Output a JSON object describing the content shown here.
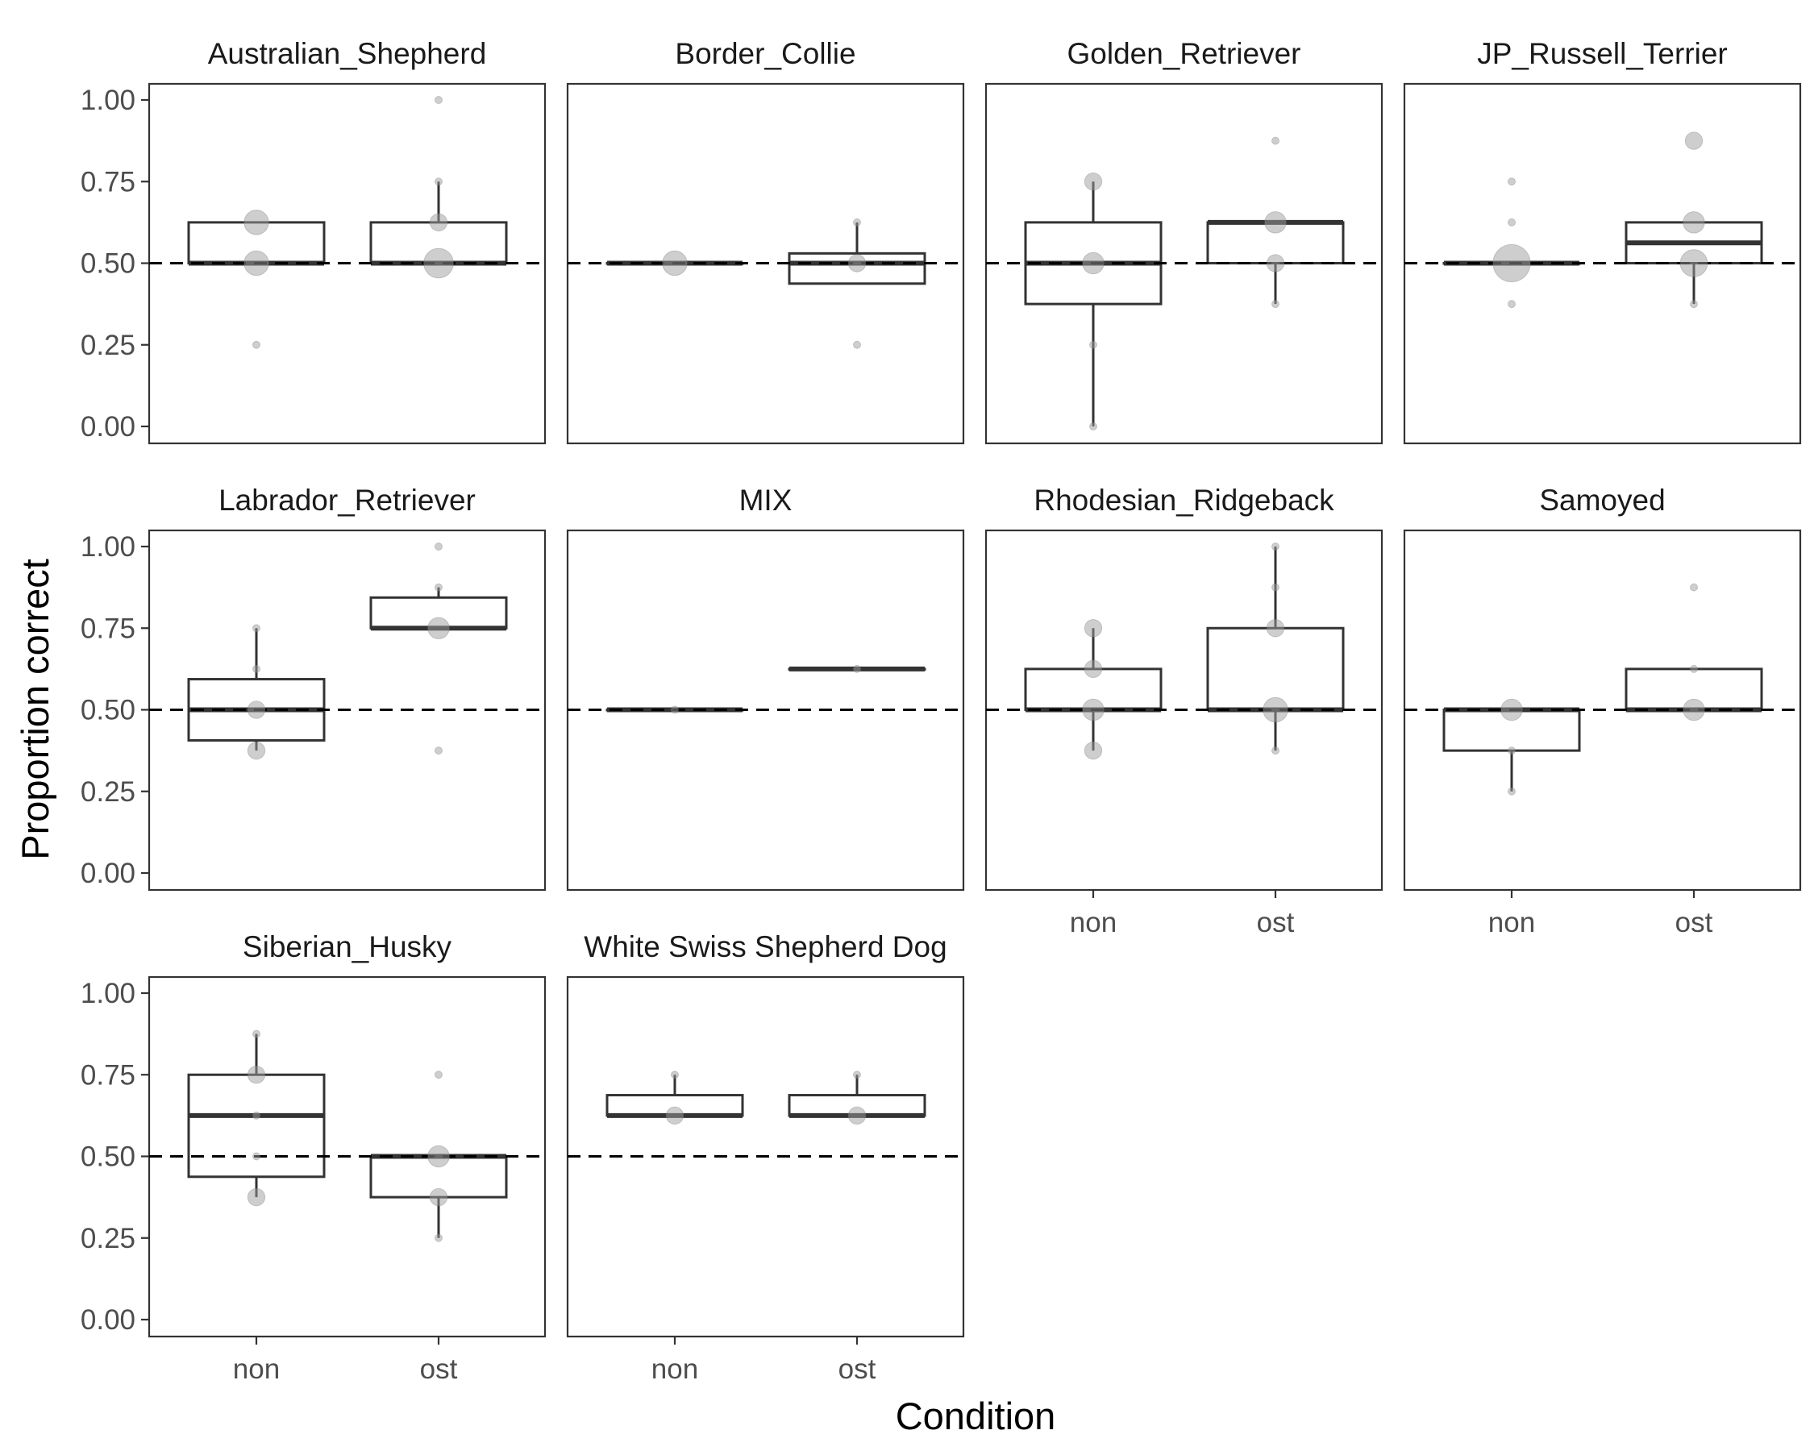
{
  "chart_data": {
    "type": "boxplot",
    "xlabel": "Condition",
    "ylabel": "Proportion correct",
    "ylim": [
      0,
      1
    ],
    "yticks": [
      "0.00",
      "0.25",
      "0.50",
      "0.75",
      "1.00"
    ],
    "categories": [
      "non",
      "ost"
    ],
    "reference_line": 0.5,
    "grid": false,
    "point_color": "#9e9e9e",
    "panels": [
      {
        "title": "Australian_Shepherd",
        "groups": [
          {
            "condition": "non",
            "box": {
              "lower": 0.5,
              "q1": 0.5,
              "median": 0.5,
              "q3": 0.625,
              "upper": 0.625
            },
            "points": [
              {
                "y": 0.625,
                "n": 4
              },
              {
                "y": 0.5,
                "n": 4
              },
              {
                "y": 0.25,
                "n": 1
              }
            ]
          },
          {
            "condition": "ost",
            "box": {
              "lower": 0.5,
              "q1": 0.5,
              "median": 0.5,
              "q3": 0.625,
              "upper": 0.75
            },
            "points": [
              {
                "y": 1.0,
                "n": 1
              },
              {
                "y": 0.75,
                "n": 1
              },
              {
                "y": 0.625,
                "n": 2
              },
              {
                "y": 0.5,
                "n": 6
              }
            ]
          }
        ]
      },
      {
        "title": "Border_Collie",
        "groups": [
          {
            "condition": "non",
            "box": {
              "lower": 0.5,
              "q1": 0.5,
              "median": 0.5,
              "q3": 0.5,
              "upper": 0.5
            },
            "points": [
              {
                "y": 0.5,
                "n": 4
              }
            ]
          },
          {
            "condition": "ost",
            "box": {
              "lower": 0.4375,
              "q1": 0.4375,
              "median": 0.5,
              "q3": 0.53,
              "upper": 0.625
            },
            "points": [
              {
                "y": 0.625,
                "n": 1
              },
              {
                "y": 0.5,
                "n": 2
              },
              {
                "y": 0.25,
                "n": 1
              }
            ]
          }
        ]
      },
      {
        "title": "Golden_Retriever",
        "groups": [
          {
            "condition": "non",
            "box": {
              "lower": 0.0,
              "q1": 0.375,
              "median": 0.5,
              "q3": 0.625,
              "upper": 0.75
            },
            "points": [
              {
                "y": 0.75,
                "n": 2
              },
              {
                "y": 0.5,
                "n": 3
              },
              {
                "y": 0.25,
                "n": 1
              },
              {
                "y": 0.0,
                "n": 1
              }
            ]
          },
          {
            "condition": "ost",
            "box": {
              "lower": 0.375,
              "q1": 0.5,
              "median": 0.625,
              "q3": 0.625,
              "upper": 0.625
            },
            "points": [
              {
                "y": 0.875,
                "n": 1
              },
              {
                "y": 0.625,
                "n": 3
              },
              {
                "y": 0.5,
                "n": 2
              },
              {
                "y": 0.375,
                "n": 1
              }
            ]
          }
        ]
      },
      {
        "title": "JP_Russell_Terrier",
        "groups": [
          {
            "condition": "non",
            "box": {
              "lower": 0.5,
              "q1": 0.5,
              "median": 0.5,
              "q3": 0.5,
              "upper": 0.5
            },
            "points": [
              {
                "y": 0.75,
                "n": 1
              },
              {
                "y": 0.625,
                "n": 1
              },
              {
                "y": 0.5,
                "n": 10
              },
              {
                "y": 0.375,
                "n": 1
              }
            ]
          },
          {
            "condition": "ost",
            "box": {
              "lower": 0.375,
              "q1": 0.5,
              "median": 0.5625,
              "q3": 0.625,
              "upper": 0.625
            },
            "points": [
              {
                "y": 0.875,
                "n": 2
              },
              {
                "y": 0.625,
                "n": 3
              },
              {
                "y": 0.5,
                "n": 5
              },
              {
                "y": 0.375,
                "n": 1
              }
            ]
          }
        ]
      },
      {
        "title": "Labrador_Retriever",
        "groups": [
          {
            "condition": "non",
            "box": {
              "lower": 0.375,
              "q1": 0.40625,
              "median": 0.5,
              "q3": 0.59375,
              "upper": 0.75
            },
            "points": [
              {
                "y": 0.75,
                "n": 1
              },
              {
                "y": 0.625,
                "n": 1
              },
              {
                "y": 0.5,
                "n": 2
              },
              {
                "y": 0.375,
                "n": 2
              }
            ]
          },
          {
            "condition": "ost",
            "box": {
              "lower": 0.75,
              "q1": 0.75,
              "median": 0.75,
              "q3": 0.84375,
              "upper": 0.875
            },
            "points": [
              {
                "y": 1.0,
                "n": 1
              },
              {
                "y": 0.875,
                "n": 1
              },
              {
                "y": 0.75,
                "n": 3
              },
              {
                "y": 0.375,
                "n": 1
              }
            ]
          }
        ]
      },
      {
        "title": "MIX",
        "groups": [
          {
            "condition": "non",
            "box": {
              "lower": 0.5,
              "q1": 0.5,
              "median": 0.5,
              "q3": 0.5,
              "upper": 0.5
            },
            "points": [
              {
                "y": 0.5,
                "n": 1
              }
            ]
          },
          {
            "condition": "ost",
            "box": {
              "lower": 0.625,
              "q1": 0.625,
              "median": 0.625,
              "q3": 0.625,
              "upper": 0.625
            },
            "points": [
              {
                "y": 0.625,
                "n": 1
              }
            ]
          }
        ]
      },
      {
        "title": "Rhodesian_Ridgeback",
        "groups": [
          {
            "condition": "non",
            "box": {
              "lower": 0.375,
              "q1": 0.5,
              "median": 0.5,
              "q3": 0.625,
              "upper": 0.75
            },
            "points": [
              {
                "y": 0.75,
                "n": 2
              },
              {
                "y": 0.625,
                "n": 2
              },
              {
                "y": 0.5,
                "n": 3
              },
              {
                "y": 0.375,
                "n": 2
              }
            ]
          },
          {
            "condition": "ost",
            "box": {
              "lower": 0.375,
              "q1": 0.5,
              "median": 0.5,
              "q3": 0.75,
              "upper": 1.0
            },
            "points": [
              {
                "y": 1.0,
                "n": 1
              },
              {
                "y": 0.875,
                "n": 1
              },
              {
                "y": 0.75,
                "n": 2
              },
              {
                "y": 0.5,
                "n": 4
              },
              {
                "y": 0.375,
                "n": 1
              }
            ]
          }
        ]
      },
      {
        "title": "Samoyed",
        "groups": [
          {
            "condition": "non",
            "box": {
              "lower": 0.25,
              "q1": 0.375,
              "median": 0.5,
              "q3": 0.5,
              "upper": 0.5
            },
            "points": [
              {
                "y": 0.5,
                "n": 3
              },
              {
                "y": 0.375,
                "n": 1
              },
              {
                "y": 0.25,
                "n": 1
              }
            ]
          },
          {
            "condition": "ost",
            "box": {
              "lower": 0.5,
              "q1": 0.5,
              "median": 0.5,
              "q3": 0.625,
              "upper": 0.625
            },
            "points": [
              {
                "y": 0.875,
                "n": 1
              },
              {
                "y": 0.625,
                "n": 1
              },
              {
                "y": 0.5,
                "n": 3
              }
            ]
          }
        ]
      },
      {
        "title": "Siberian_Husky",
        "groups": [
          {
            "condition": "non",
            "box": {
              "lower": 0.375,
              "q1": 0.4375,
              "median": 0.625,
              "q3": 0.75,
              "upper": 0.875
            },
            "points": [
              {
                "y": 0.875,
                "n": 1
              },
              {
                "y": 0.75,
                "n": 2
              },
              {
                "y": 0.625,
                "n": 1
              },
              {
                "y": 0.5,
                "n": 1
              },
              {
                "y": 0.375,
                "n": 2
              }
            ]
          },
          {
            "condition": "ost",
            "box": {
              "lower": 0.25,
              "q1": 0.375,
              "median": 0.5,
              "q3": 0.5,
              "upper": 0.5
            },
            "points": [
              {
                "y": 0.75,
                "n": 1
              },
              {
                "y": 0.5,
                "n": 3
              },
              {
                "y": 0.375,
                "n": 2
              },
              {
                "y": 0.25,
                "n": 1
              }
            ]
          }
        ]
      },
      {
        "title": "White Swiss Shepherd Dog",
        "groups": [
          {
            "condition": "non",
            "box": {
              "lower": 0.625,
              "q1": 0.625,
              "median": 0.625,
              "q3": 0.6875,
              "upper": 0.75
            },
            "points": [
              {
                "y": 0.75,
                "n": 1
              },
              {
                "y": 0.625,
                "n": 2
              }
            ]
          },
          {
            "condition": "ost",
            "box": {
              "lower": 0.625,
              "q1": 0.625,
              "median": 0.625,
              "q3": 0.6875,
              "upper": 0.75
            },
            "points": [
              {
                "y": 0.75,
                "n": 1
              },
              {
                "y": 0.625,
                "n": 2
              }
            ]
          }
        ]
      }
    ]
  }
}
